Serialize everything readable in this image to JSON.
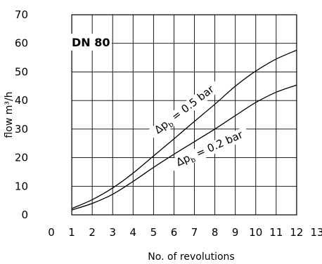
{
  "chart_data": {
    "type": "line",
    "title": "DN 80",
    "xlabel": "No. of revolutions",
    "ylabel": "flow m³/h",
    "xlim": [
      0,
      13
    ],
    "ylim": [
      0,
      70
    ],
    "xticks": [
      0,
      1,
      2,
      3,
      4,
      5,
      6,
      7,
      8,
      9,
      10,
      11,
      12,
      13
    ],
    "yticks": [
      0,
      10,
      20,
      30,
      40,
      50,
      60,
      70
    ],
    "grid": true,
    "grid_x_range": [
      1,
      12
    ],
    "series": [
      {
        "name": "Δp_b = 0.5 bar",
        "label_prefix": "Δp",
        "label_sub": "b",
        "label_suffix": " = 0.5 bar",
        "x": [
          1,
          2,
          3,
          4,
          5,
          6,
          7,
          8,
          9,
          10,
          11,
          12
        ],
        "y": [
          2.2,
          5.3,
          9.4,
          14.6,
          20.6,
          26.6,
          32.7,
          38.7,
          45.0,
          50.3,
          54.5,
          57.6
        ]
      },
      {
        "name": "Δp_b = 0.2 bar",
        "label_prefix": "Δp",
        "label_sub": "b",
        "label_suffix": " = 0.2 bar",
        "x": [
          1,
          2,
          3,
          4,
          5,
          6,
          7,
          8,
          9,
          10,
          11,
          12
        ],
        "y": [
          1.7,
          4.0,
          7.2,
          11.7,
          16.6,
          21.2,
          25.6,
          30.0,
          34.7,
          39.3,
          42.9,
          45.4
        ]
      }
    ]
  }
}
